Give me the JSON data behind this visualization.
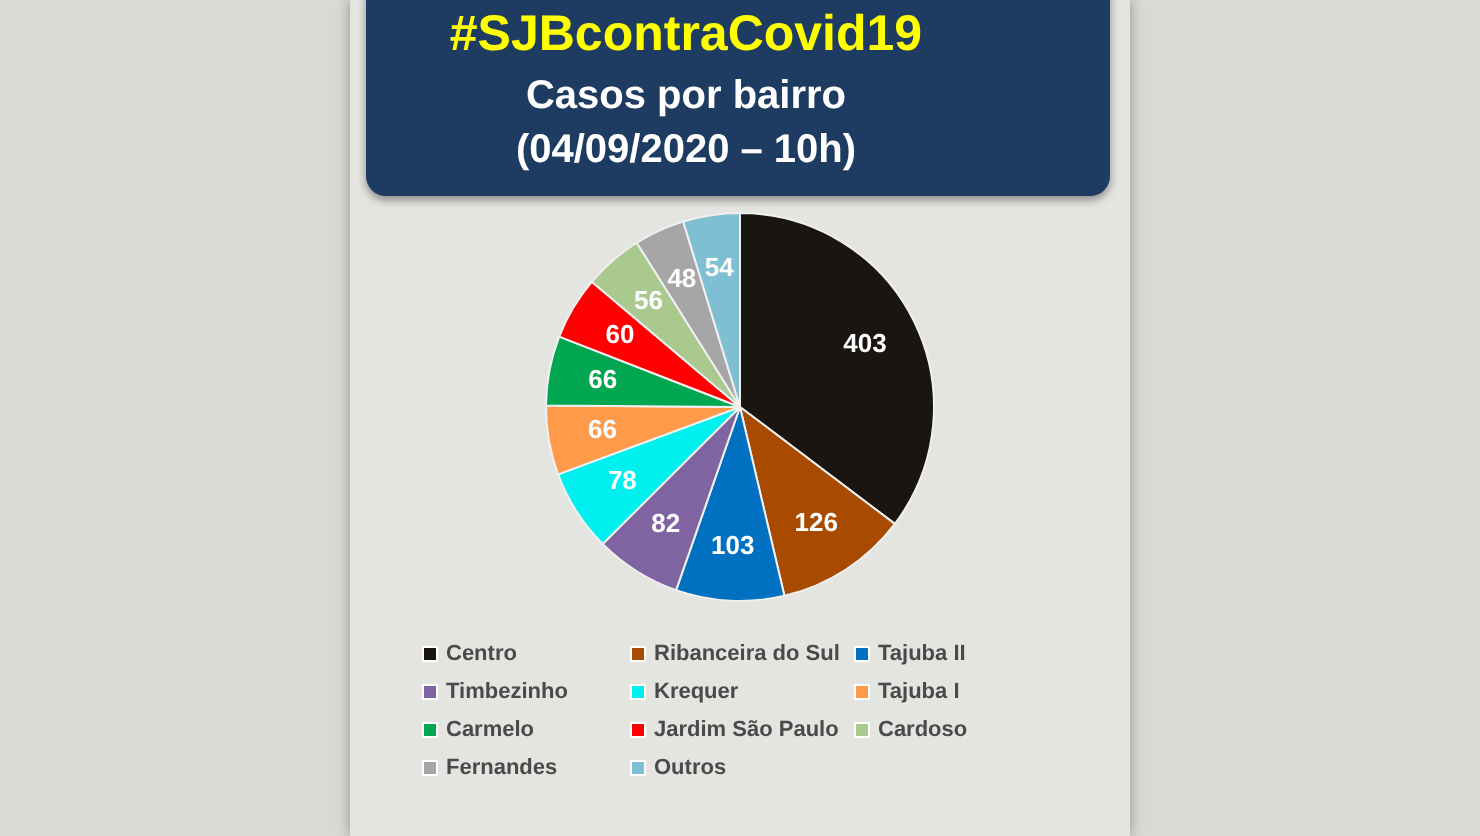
{
  "chart_data": {
    "type": "pie",
    "title": "#SJBcontraCovid19",
    "subtitle": "Casos por bairro\n(04/09/2020 – 10h)",
    "categories": [
      "Centro",
      "Ribanceira do Sul",
      "Tajuba II",
      "Timbezinho",
      "Krequer",
      "Tajuba I",
      "Carmelo",
      "Jardim São Paulo",
      "Cardoso",
      "Fernandes",
      "Outros"
    ],
    "values": [
      403,
      126,
      103,
      82,
      78,
      66,
      66,
      60,
      56,
      48,
      54
    ],
    "colors": [
      "#1a1510",
      "#a84a00",
      "#0070c0",
      "#8064a2",
      "#00f0f0",
      "#ff9a4a",
      "#00a650",
      "#ff0000",
      "#a9c98f",
      "#a6a6a6",
      "#7fbfd4"
    ],
    "data_labels": true,
    "legend": "bottom"
  }
}
